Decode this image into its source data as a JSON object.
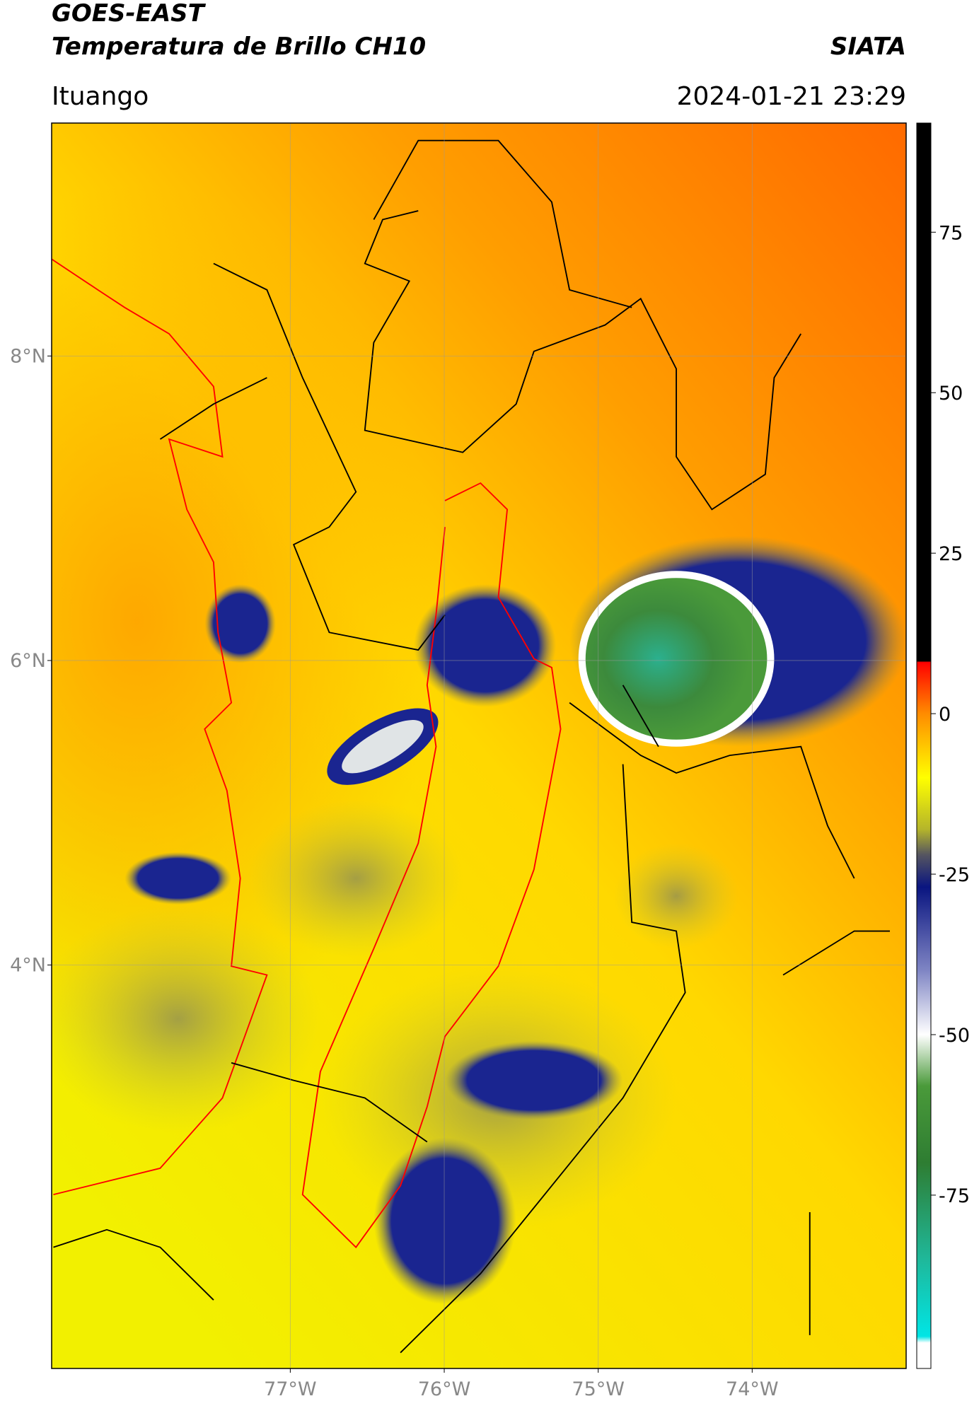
{
  "header": {
    "title": "GOES-EAST",
    "subtitle": "Temperatura de Brillo CH10",
    "source": "SIATA",
    "location": "Ituango",
    "datetime": "2024-01-21 23:29"
  },
  "map": {
    "xlim": [
      -78.55,
      -73.0
    ],
    "ylim": [
      1.35,
      9.53
    ],
    "xticks": [
      {
        "value": -77,
        "label": "77°W"
      },
      {
        "value": -76,
        "label": "76°W"
      },
      {
        "value": -75,
        "label": "75°W"
      },
      {
        "value": -74,
        "label": "74°W"
      }
    ],
    "yticks": [
      {
        "value": 8,
        "label": "8°N"
      },
      {
        "value": 6,
        "label": "6°N"
      },
      {
        "value": 4,
        "label": "4°N"
      }
    ],
    "grid": true
  },
  "colorbar": {
    "lim": [
      -102,
      92
    ],
    "ticks": [
      75,
      50,
      25,
      0,
      -25,
      -50,
      -75
    ],
    "colormap": [
      [
        92,
        "#000000"
      ],
      [
        8.2,
        "#000000"
      ],
      [
        8,
        "#ff0000"
      ],
      [
        0,
        "#ff8c00"
      ],
      [
        -10,
        "#ffff00"
      ],
      [
        -18,
        "#b5b52a"
      ],
      [
        -22,
        "#555560"
      ],
      [
        -27,
        "#0a1580"
      ],
      [
        -40,
        "#7f85c4"
      ],
      [
        -50,
        "#ffffff"
      ],
      [
        -58,
        "#4a9a3a"
      ],
      [
        -70,
        "#2e7d32"
      ],
      [
        -85,
        "#1fb89a"
      ],
      [
        -97,
        "#00e5e5"
      ],
      [
        -98,
        "#ffffff"
      ],
      [
        -102,
        "#ffffff"
      ]
    ]
  }
}
